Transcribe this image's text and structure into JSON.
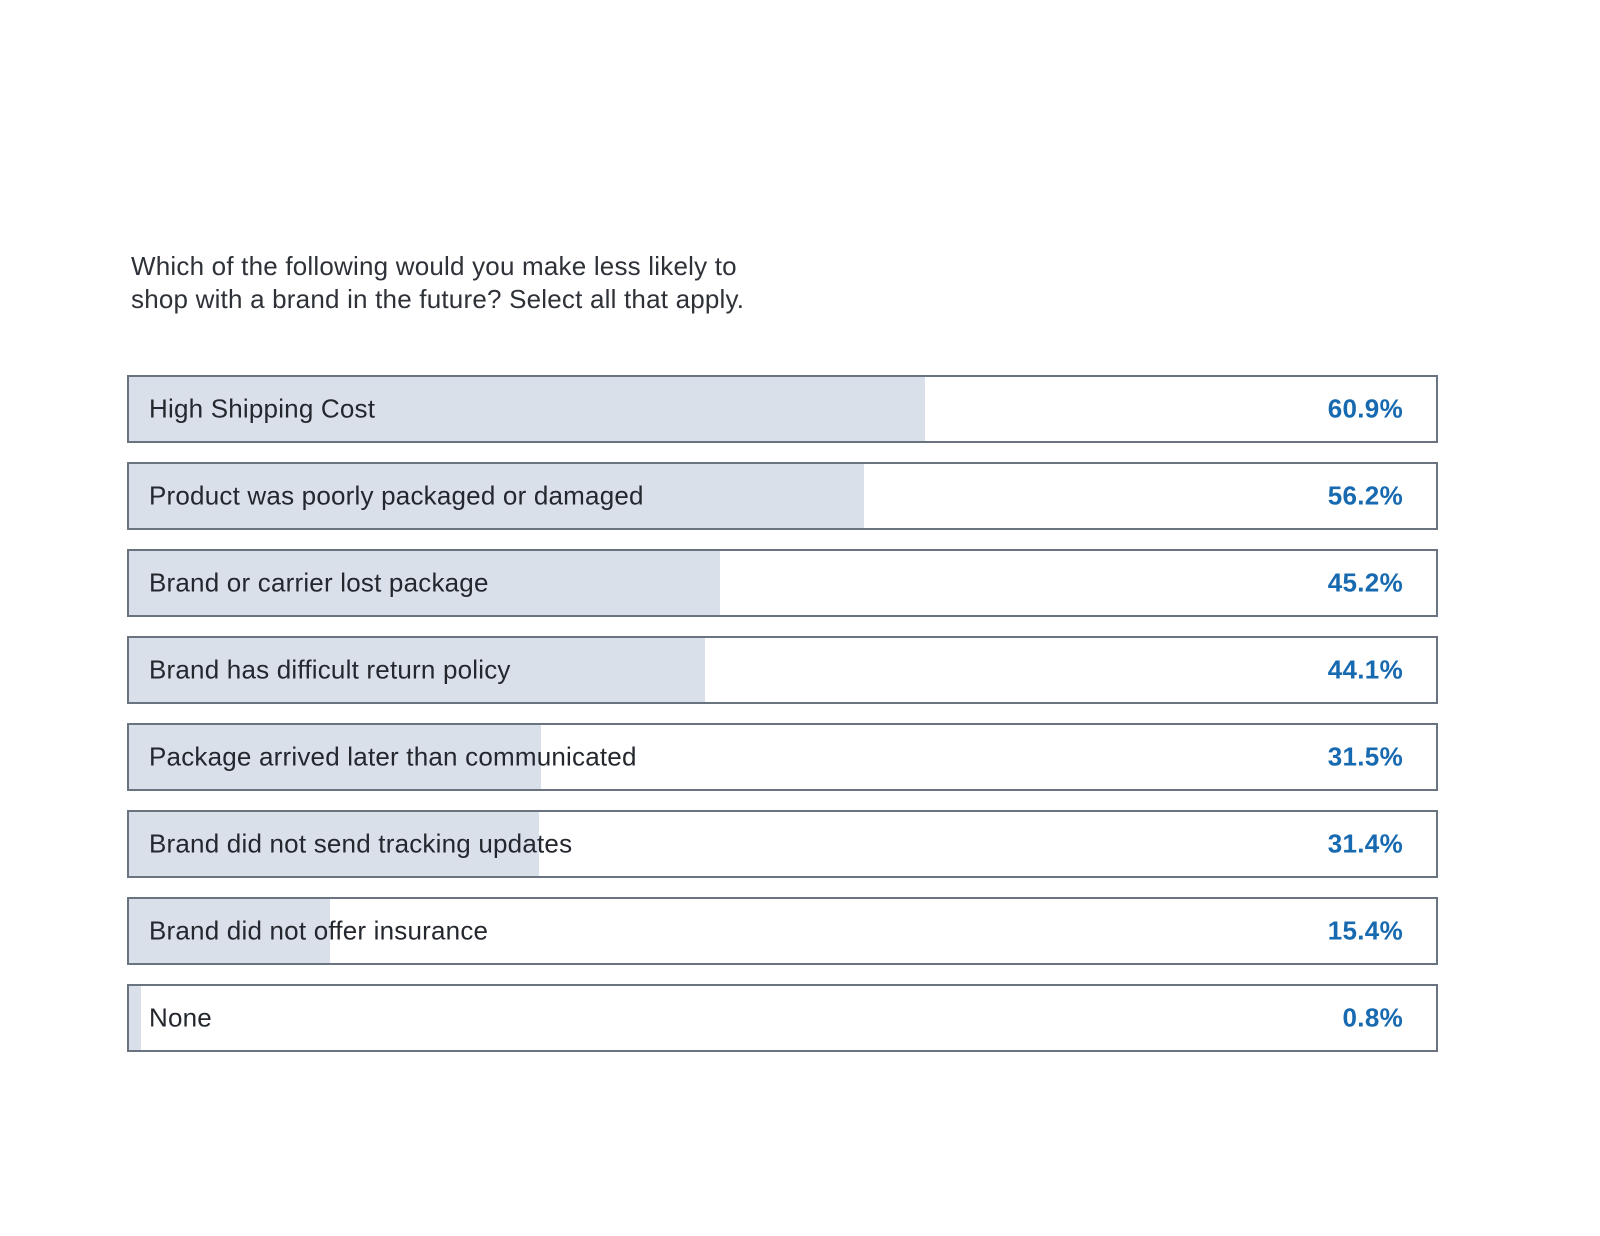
{
  "title": {
    "text": "Which of the following would you make less likely to shop with a brand in the future? Select all that apply.",
    "lines": [
      "Which of the following would you make less likely to",
      "shop with a brand in the future? Select all that apply."
    ]
  },
  "colors": {
    "background": "#ffffff",
    "bar_fill": "#dae0e9",
    "bar_border": "#6a7380",
    "value_text": "#1769b0",
    "label_text": "#24282e",
    "title_text": "#2e3238"
  },
  "chart_data": {
    "type": "bar",
    "orientation": "horizontal",
    "title": "Which of the following would you make less likely to shop with a brand in the future? Select all that apply.",
    "categories": [
      "High Shipping Cost",
      "Product was poorly packaged or damaged",
      "Brand or carrier lost package",
      "Brand has difficult return policy",
      "Package arrived later than communicated",
      "Brand did not send tracking updates",
      "Brand did not offer insurance",
      "None"
    ],
    "values": [
      60.9,
      56.2,
      45.2,
      44.1,
      31.5,
      31.4,
      15.4,
      0.8
    ],
    "value_labels": [
      "60.9%",
      "56.2%",
      "45.2%",
      "44.1%",
      "31.5%",
      "31.4%",
      "15.4%",
      "0.8%"
    ],
    "xlabel": "",
    "ylabel": "",
    "xlim": [
      0,
      100
    ],
    "grid": false,
    "legend": false,
    "value_label_position": "inside-right"
  }
}
